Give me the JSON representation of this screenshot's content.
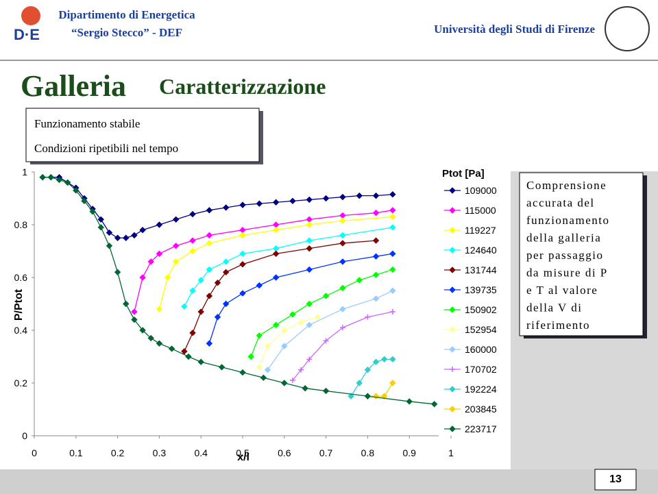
{
  "header": {
    "dept": "Dipartimento di Energetica",
    "dept_sub": "“Sergio Stecco” - DEF",
    "logo": "D·E",
    "university": "Università degli Studi di Firenze"
  },
  "slide": {
    "title": "Galleria",
    "subtitle": "Caratterizzazione",
    "box_lines": [
      "Funzionamento stabile",
      "Condizioni ripetibili nel tempo"
    ],
    "callout_lines": [
      "Comprensione",
      "accurata del",
      "funzionamento",
      "della galleria",
      "per passaggio",
      "da misure di P",
      "e T al valore",
      "della V di",
      "riferimento"
    ],
    "page": "13"
  },
  "chart_data": {
    "type": "line",
    "ylabel": "P/Ptot",
    "xlabel": "x/l",
    "legend_title": "Ptot [Pa]",
    "xlim": [
      0,
      1
    ],
    "ylim": [
      0,
      1
    ],
    "xticks": [
      0,
      0.1,
      0.2,
      0.3,
      0.4,
      0.5,
      0.6,
      0.7,
      0.8,
      0.9,
      1
    ],
    "yticks": [
      0,
      0.2,
      0.4,
      0.6,
      0.8,
      1
    ],
    "grid": false,
    "series": [
      {
        "name": "109000",
        "color": "#000080",
        "marker": "diamond",
        "x": [
          0.02,
          0.04,
          0.06,
          0.08,
          0.1,
          0.12,
          0.14,
          0.16,
          0.18,
          0.2,
          0.22,
          0.24,
          0.26,
          0.3,
          0.34,
          0.38,
          0.42,
          0.46,
          0.5,
          0.54,
          0.58,
          0.62,
          0.66,
          0.7,
          0.74,
          0.78,
          0.82,
          0.86
        ],
        "values": [
          0.98,
          0.98,
          0.98,
          0.96,
          0.94,
          0.9,
          0.86,
          0.82,
          0.77,
          0.75,
          0.75,
          0.76,
          0.78,
          0.8,
          0.82,
          0.84,
          0.855,
          0.865,
          0.875,
          0.88,
          0.885,
          0.89,
          0.895,
          0.9,
          0.905,
          0.91,
          0.91,
          0.915
        ]
      },
      {
        "name": "115000",
        "color": "#ff00ff",
        "marker": "diamond",
        "x": [
          0.24,
          0.26,
          0.28,
          0.3,
          0.34,
          0.38,
          0.42,
          0.5,
          0.58,
          0.66,
          0.74,
          0.82,
          0.86
        ],
        "values": [
          0.47,
          0.6,
          0.66,
          0.69,
          0.72,
          0.74,
          0.76,
          0.78,
          0.8,
          0.82,
          0.835,
          0.845,
          0.855
        ]
      },
      {
        "name": "119227",
        "color": "#ffff00",
        "marker": "diamond",
        "x": [
          0.3,
          0.32,
          0.34,
          0.38,
          0.42,
          0.5,
          0.58,
          0.66,
          0.74,
          0.86
        ],
        "values": [
          0.48,
          0.6,
          0.66,
          0.7,
          0.73,
          0.76,
          0.78,
          0.8,
          0.815,
          0.83
        ]
      },
      {
        "name": "124640",
        "color": "#00ffff",
        "marker": "diamond",
        "x": [
          0.36,
          0.38,
          0.4,
          0.42,
          0.46,
          0.5,
          0.58,
          0.66,
          0.74,
          0.86
        ],
        "values": [
          0.49,
          0.55,
          0.59,
          0.63,
          0.66,
          0.69,
          0.71,
          0.74,
          0.76,
          0.79
        ]
      },
      {
        "name": "131744",
        "color": "#800000",
        "marker": "diamond",
        "x": [
          0.36,
          0.38,
          0.4,
          0.42,
          0.44,
          0.46,
          0.5,
          0.58,
          0.66,
          0.74,
          0.82
        ],
        "values": [
          0.32,
          0.39,
          0.47,
          0.53,
          0.58,
          0.62,
          0.65,
          0.69,
          0.71,
          0.73,
          0.74
        ]
      },
      {
        "name": "139735",
        "color": "#0033ff",
        "marker": "diamond",
        "x": [
          0.42,
          0.44,
          0.46,
          0.5,
          0.54,
          0.58,
          0.66,
          0.74,
          0.82,
          0.86
        ],
        "values": [
          0.35,
          0.45,
          0.5,
          0.54,
          0.57,
          0.6,
          0.63,
          0.66,
          0.68,
          0.69
        ]
      },
      {
        "name": "150902",
        "color": "#00ff00",
        "marker": "diamond",
        "x": [
          0.52,
          0.54,
          0.58,
          0.62,
          0.66,
          0.7,
          0.74,
          0.78,
          0.82,
          0.86
        ],
        "values": [
          0.3,
          0.38,
          0.42,
          0.46,
          0.5,
          0.53,
          0.56,
          0.59,
          0.61,
          0.63
        ]
      },
      {
        "name": "152954",
        "color": "#ffff99",
        "marker": "diamond",
        "x": [
          0.54,
          0.56,
          0.6,
          0.64,
          0.68
        ],
        "values": [
          0.26,
          0.34,
          0.4,
          0.43,
          0.45
        ]
      },
      {
        "name": "160000",
        "color": "#99ccff",
        "marker": "diamond",
        "x": [
          0.56,
          0.6,
          0.66,
          0.74,
          0.82,
          0.86
        ],
        "values": [
          0.25,
          0.34,
          0.42,
          0.48,
          0.52,
          0.55
        ]
      },
      {
        "name": "170702",
        "color": "#cc66ff",
        "marker": "plus",
        "x": [
          0.62,
          0.64,
          0.66,
          0.7,
          0.74,
          0.8,
          0.86
        ],
        "values": [
          0.21,
          0.25,
          0.29,
          0.36,
          0.41,
          0.45,
          0.47
        ]
      },
      {
        "name": "192224",
        "color": "#33cccc",
        "marker": "diamond",
        "x": [
          0.76,
          0.78,
          0.8,
          0.82,
          0.84,
          0.86
        ],
        "values": [
          0.15,
          0.2,
          0.25,
          0.28,
          0.29,
          0.29
        ]
      },
      {
        "name": "203845",
        "color": "#ffcc00",
        "marker": "diamond",
        "x": [
          0.8,
          0.82,
          0.84,
          0.86
        ],
        "values": [
          0.15,
          0.15,
          0.15,
          0.2
        ]
      },
      {
        "name": "223717",
        "color": "#006633",
        "marker": "diamond",
        "x": [
          0.02,
          0.04,
          0.06,
          0.08,
          0.1,
          0.12,
          0.14,
          0.16,
          0.18,
          0.2,
          0.22,
          0.24,
          0.26,
          0.28,
          0.3,
          0.33,
          0.37,
          0.4,
          0.45,
          0.5,
          0.55,
          0.6,
          0.65,
          0.7,
          0.8,
          0.9,
          0.96
        ],
        "values": [
          0.98,
          0.98,
          0.97,
          0.96,
          0.93,
          0.89,
          0.85,
          0.79,
          0.72,
          0.62,
          0.5,
          0.44,
          0.4,
          0.37,
          0.35,
          0.33,
          0.3,
          0.28,
          0.26,
          0.24,
          0.22,
          0.2,
          0.18,
          0.17,
          0.15,
          0.13,
          0.12
        ]
      }
    ]
  }
}
